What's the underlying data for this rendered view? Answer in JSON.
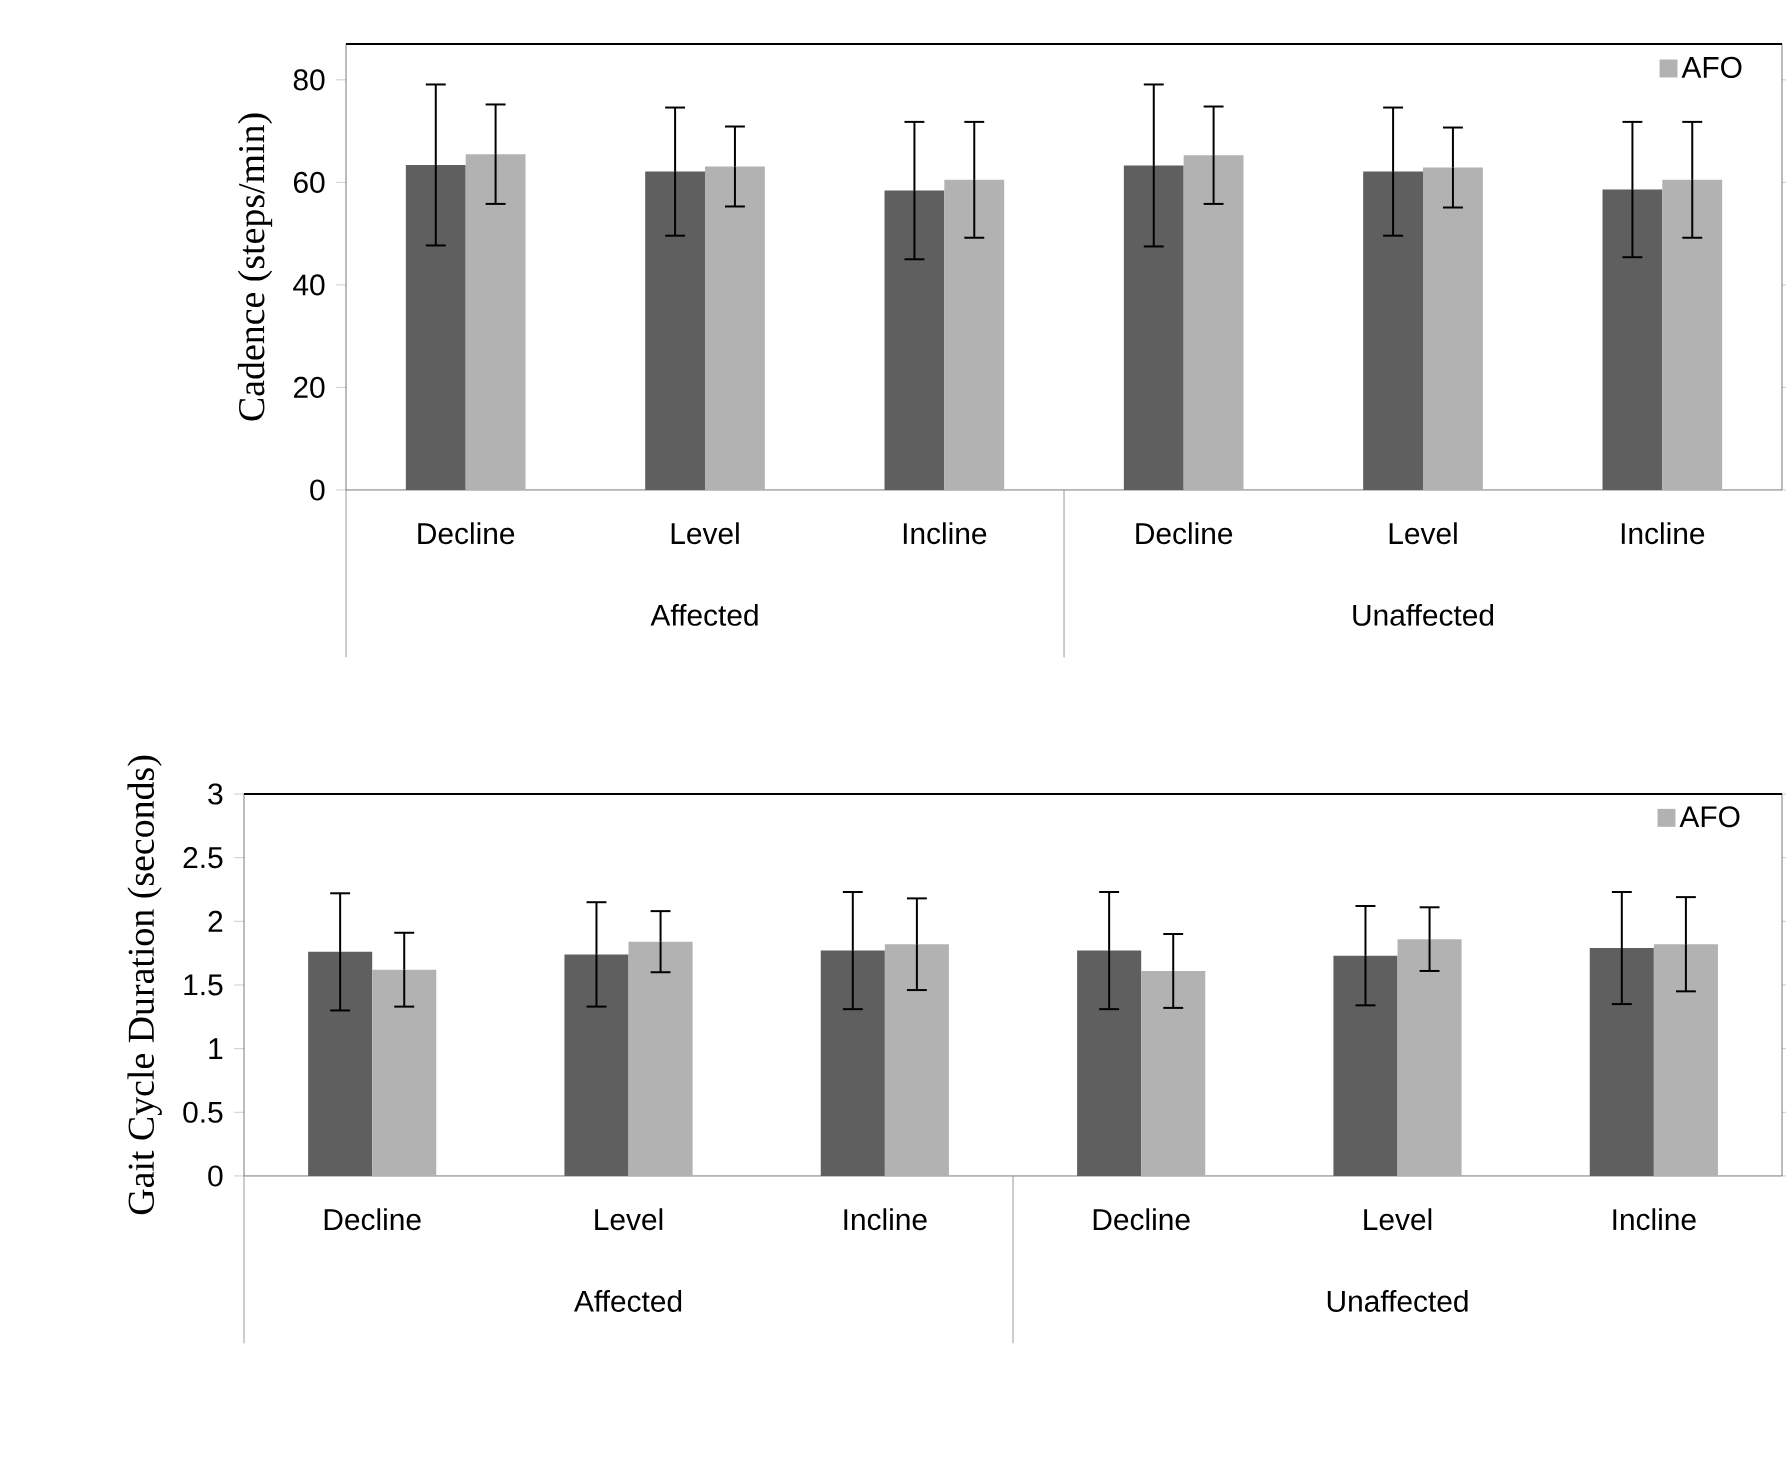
{
  "chart_data": [
    {
      "type": "bar",
      "ylabel": "Cadence (steps/min)",
      "categories": [
        "Decline",
        "Level",
        "Incline",
        "Decline",
        "Level",
        "Incline"
      ],
      "annotations": [
        "Affected",
        "Unaffected"
      ],
      "ylim": [
        0,
        87
      ],
      "yticks": [
        0,
        20,
        40,
        60,
        80
      ],
      "legend": "top right",
      "series": [
        {
          "color": "#5f5f5f",
          "values": [
            63.4,
            62.1,
            58.4,
            63.3,
            62.1,
            58.6
          ],
          "errors": [
            15.7,
            12.5,
            13.4,
            15.8,
            12.5,
            13.2
          ]
        },
        {
          "name": "AFO",
          "color": "#b2b2b2",
          "values": [
            65.5,
            63.1,
            60.5,
            65.3,
            62.9,
            60.5
          ],
          "errors": [
            9.7,
            7.8,
            11.3,
            9.5,
            7.8,
            11.3
          ]
        }
      ]
    },
    {
      "type": "bar",
      "ylabel": "Gait Cycle Duration (seconds)",
      "categories": [
        "Decline",
        "Level",
        "Incline",
        "Decline",
        "Level",
        "Incline"
      ],
      "annotations": [
        "Affected",
        "Unaffected"
      ],
      "ylim": [
        0,
        3
      ],
      "yticks": [
        0,
        0.5,
        1,
        1.5,
        2,
        2.5,
        3
      ],
      "legend": "top right",
      "series": [
        {
          "color": "#5f5f5f",
          "values": [
            1.76,
            1.74,
            1.77,
            1.77,
            1.73,
            1.79
          ],
          "errors": [
            0.46,
            0.41,
            0.46,
            0.46,
            0.39,
            0.44
          ]
        },
        {
          "name": "AFO",
          "color": "#b2b2b2",
          "values": [
            1.62,
            1.84,
            1.82,
            1.61,
            1.86,
            1.82
          ],
          "errors": [
            0.29,
            0.24,
            0.36,
            0.29,
            0.25,
            0.37
          ]
        }
      ]
    }
  ]
}
